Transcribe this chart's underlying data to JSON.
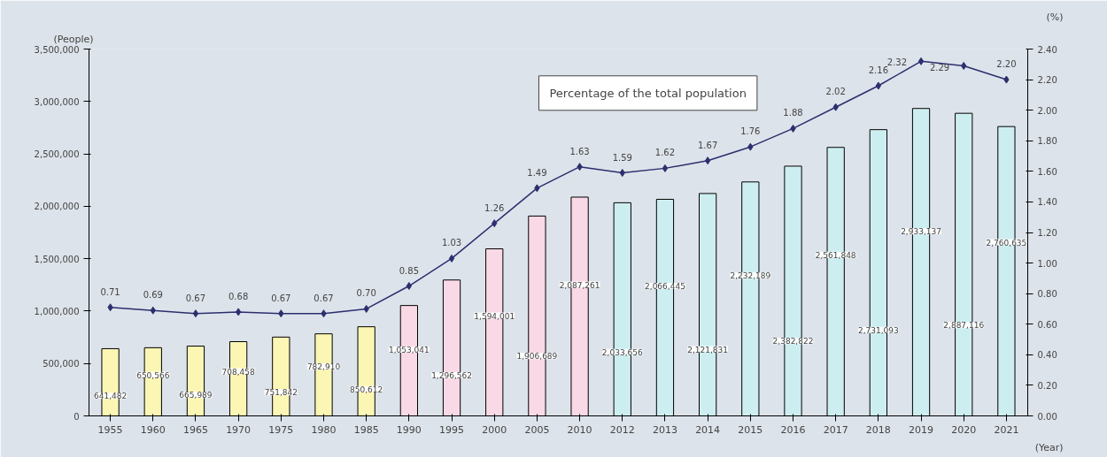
{
  "chart_data": {
    "type": "bar",
    "categories": [
      "1955",
      "1960",
      "1965",
      "1970",
      "1975",
      "1980",
      "1985",
      "1990",
      "1995",
      "2000",
      "2005",
      "2010",
      "2012",
      "2013",
      "2014",
      "2015",
      "2016",
      "2017",
      "2018",
      "2019",
      "2020",
      "2021"
    ],
    "xlabel": "(Year)",
    "ylabel": "(People)",
    "y2label": "(%)",
    "annotations": [
      "Percentage of the total population"
    ],
    "series": [
      {
        "colors": [
          "#fbf6b4",
          "#fbf6b4",
          "#fbf6b4",
          "#fbf6b4",
          "#fbf6b4",
          "#fbf6b4",
          "#fbf6b4",
          "#f9d9e6",
          "#f9d9e6",
          "#f9d9e6",
          "#f9d9e6",
          "#f9d9e6",
          "#cdeef0",
          "#cdeef0",
          "#cdeef0",
          "#cdeef0",
          "#cdeef0",
          "#cdeef0",
          "#cdeef0",
          "#cdeef0",
          "#cdeef0",
          "#cdeef0"
        ],
        "values": [
          641482,
          650566,
          665989,
          708458,
          751842,
          782910,
          850612,
          1053041,
          1296562,
          1594001,
          1906689,
          2087261,
          2033656,
          2066445,
          2121831,
          2232189,
          2382822,
          2561848,
          2731093,
          2933137,
          2887116,
          2760635
        ],
        "value_labels": [
          "641,482",
          "650,566",
          "665,989",
          "708,458",
          "751,842",
          "782,910",
          "850,612",
          "1,053,041",
          "1,296,562",
          "1,594,001",
          "1,906,689",
          "2,087,261",
          "2,033,656",
          "2,066,445",
          "2,121,831",
          "2,232,189",
          "2,382,822",
          "2,561,848",
          "2,731,093",
          "2,933,137",
          "2,887,116",
          "2,760,635"
        ]
      },
      {
        "type": "line",
        "axis": "y2",
        "color": "#2b2f6e",
        "marker": "diamond",
        "values": [
          0.71,
          0.69,
          0.67,
          0.68,
          0.67,
          0.67,
          0.7,
          0.85,
          1.03,
          1.26,
          1.49,
          1.63,
          1.59,
          1.62,
          1.67,
          1.76,
          1.88,
          2.02,
          2.16,
          2.32,
          2.29,
          2.2
        ],
        "value_labels": [
          "0.71",
          "0.69",
          "0.67",
          "0.68",
          "0.67",
          "0.67",
          "0.70",
          "0.85",
          "1.03",
          "1.26",
          "1.49",
          "1.63",
          "1.59",
          "1.62",
          "1.67",
          "1.76",
          "1.88",
          "2.02",
          "2.16",
          "2.32",
          "2.29",
          "2.20"
        ]
      }
    ],
    "ylim": [
      0,
      3500000
    ],
    "yticks": [
      0,
      {
        "value": 500000,
        "label": "500,000"
      },
      {
        "value": 1000000,
        "label": "1,000,000"
      },
      {
        "value": 1500000,
        "label": "1,500,000"
      },
      {
        "value": 2000000,
        "label": "2,000,000"
      },
      {
        "value": 2500000,
        "label": "2,500,000"
      },
      {
        "value": 3000000,
        "label": "3,000,000"
      },
      {
        "value": 3500000,
        "label": "3,500,000"
      }
    ],
    "y2lim": [
      0,
      2.4
    ],
    "y2ticks": [
      {
        "value": 0,
        "label": "0.00"
      },
      {
        "value": 0.2,
        "label": "0.20"
      },
      {
        "value": 0.4,
        "label": "0.40"
      },
      {
        "value": 0.6,
        "label": "0.60"
      },
      {
        "value": 0.8,
        "label": "0.80"
      },
      {
        "value": 1.0,
        "label": "1.00"
      },
      {
        "value": 1.2,
        "label": "1.20"
      },
      {
        "value": 1.4,
        "label": "1.40"
      },
      {
        "value": 1.6,
        "label": "1.60"
      },
      {
        "value": 1.8,
        "label": "1.80"
      },
      {
        "value": 2.0,
        "label": "2.00"
      },
      {
        "value": 2.2,
        "label": "2.20"
      },
      {
        "value": 2.4,
        "label": "2.40"
      }
    ],
    "grid": false
  }
}
